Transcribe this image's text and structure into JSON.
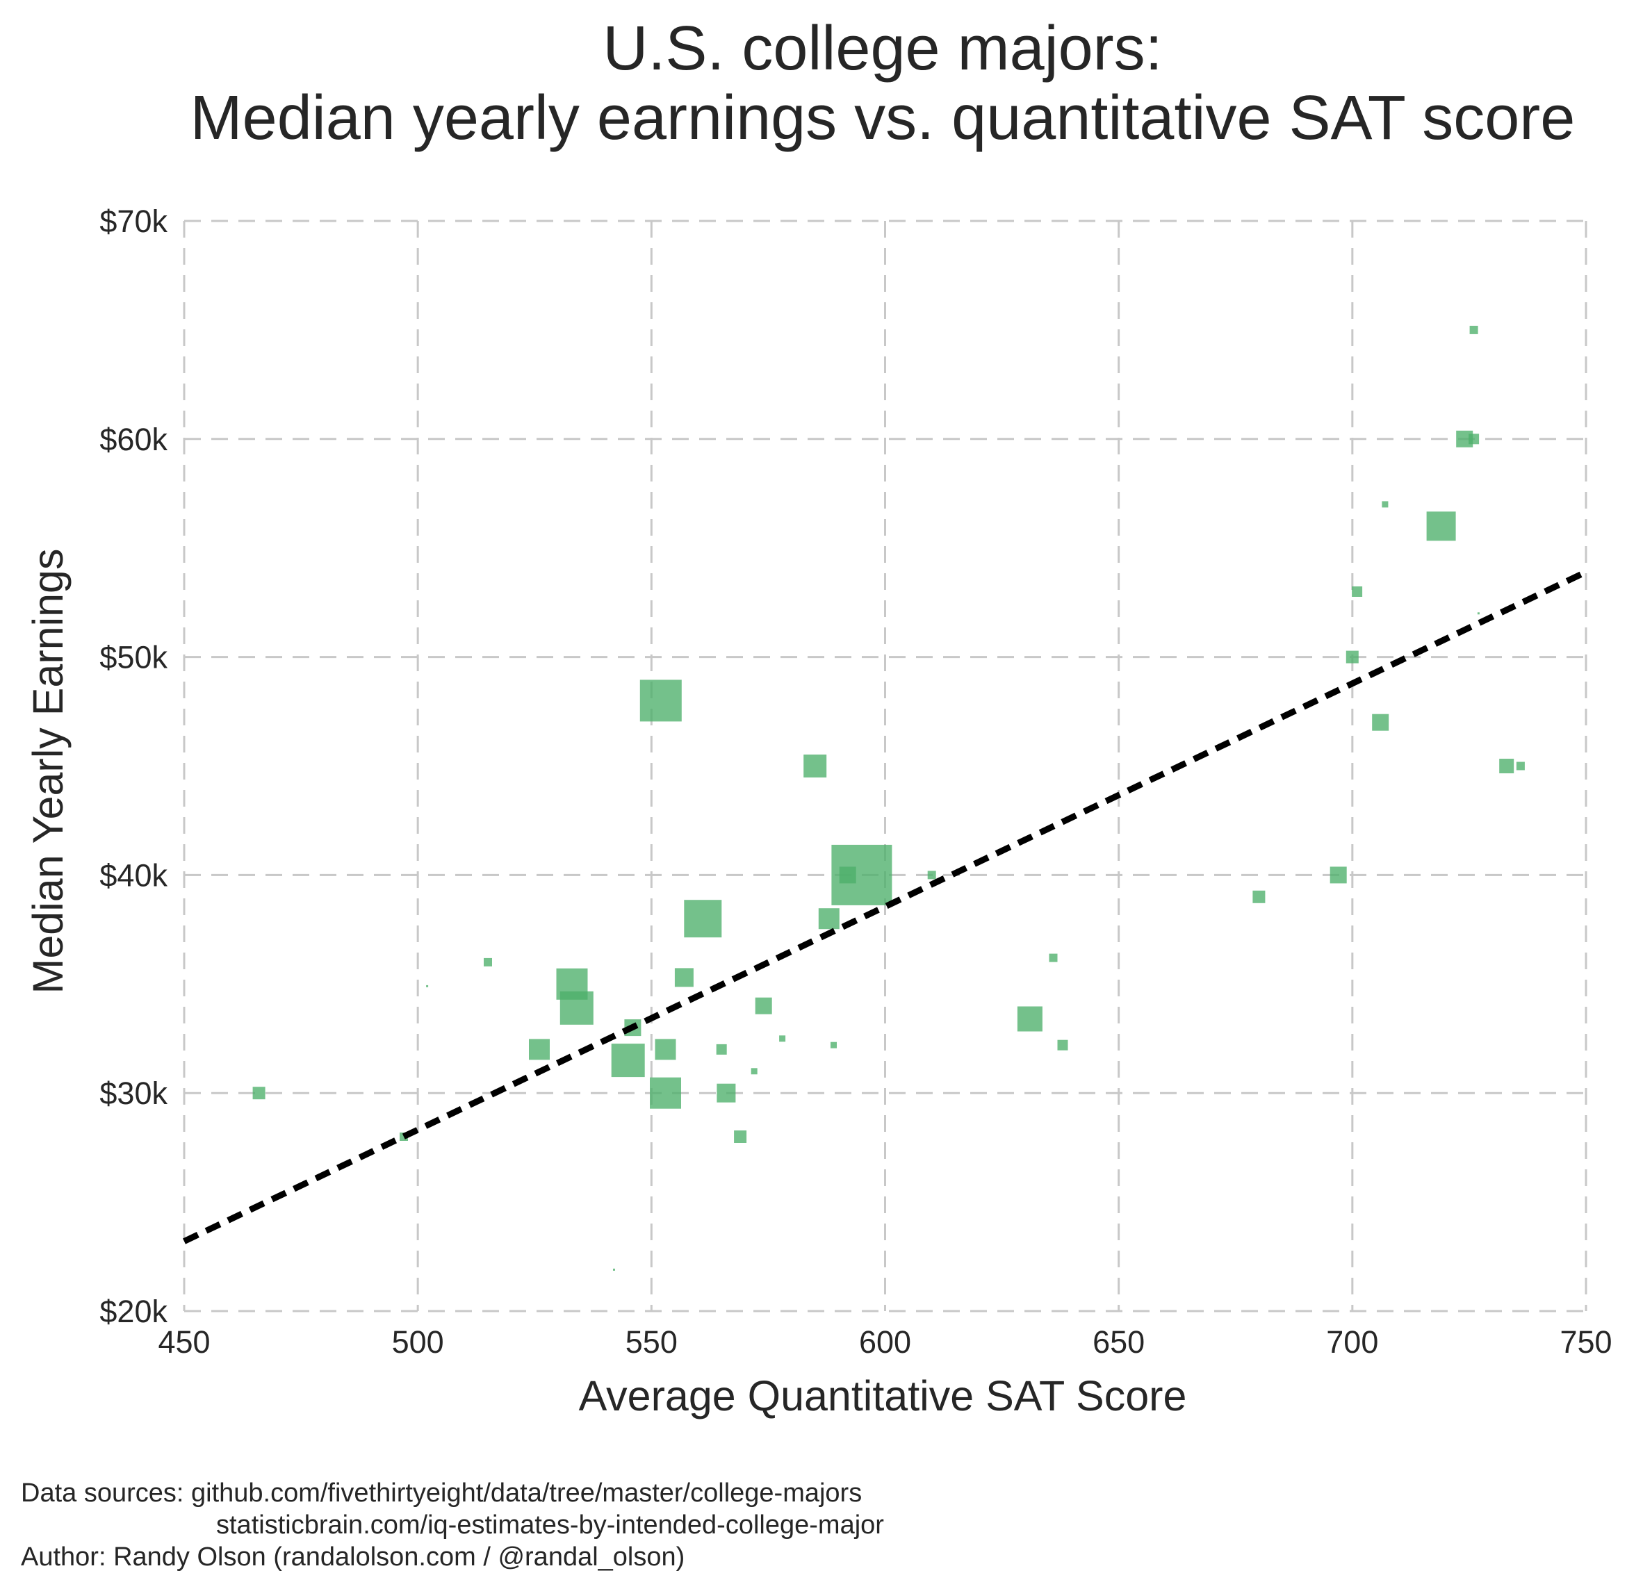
{
  "chart_data": {
    "type": "scatter",
    "title": [
      "U.S. college majors:",
      "Median yearly earnings vs. quantitative SAT score"
    ],
    "xlabel": "Average Quantitative SAT Score",
    "ylabel": "Median Yearly Earnings",
    "xlim": [
      450,
      750
    ],
    "ylim": [
      20000,
      70000
    ],
    "xticks": [
      450,
      500,
      550,
      600,
      650,
      700,
      750
    ],
    "xtick_labels": [
      "450",
      "500",
      "550",
      "600",
      "650",
      "700",
      "750"
    ],
    "yticks": [
      20000,
      30000,
      40000,
      50000,
      60000,
      70000
    ],
    "ytick_labels": [
      "$20k",
      "$30k",
      "$40k",
      "$50k",
      "$60k",
      "$70k"
    ],
    "grid": true,
    "marker": "square",
    "marker_size_encodes": "relative size of each major",
    "color": "#4daf6a",
    "trend_line": {
      "style": "dashed",
      "color": "#000000",
      "points": [
        [
          450,
          23200
        ],
        [
          750,
          53900
        ]
      ]
    },
    "points": [
      {
        "x": 466,
        "y": 30000,
        "size": 6
      },
      {
        "x": 497,
        "y": 28000,
        "size": 4
      },
      {
        "x": 502,
        "y": 34900,
        "size": 1
      },
      {
        "x": 515,
        "y": 36000,
        "size": 4
      },
      {
        "x": 526,
        "y": 32000,
        "size": 10
      },
      {
        "x": 533,
        "y": 35000,
        "size": 15
      },
      {
        "x": 534,
        "y": 33900,
        "size": 16
      },
      {
        "x": 542,
        "y": 21900,
        "size": 1
      },
      {
        "x": 545,
        "y": 31500,
        "size": 16
      },
      {
        "x": 546,
        "y": 33000,
        "size": 8
      },
      {
        "x": 552,
        "y": 48000,
        "size": 20
      },
      {
        "x": 553,
        "y": 30000,
        "size": 15
      },
      {
        "x": 553,
        "y": 32000,
        "size": 10
      },
      {
        "x": 557,
        "y": 35300,
        "size": 9
      },
      {
        "x": 561,
        "y": 38000,
        "size": 18
      },
      {
        "x": 565,
        "y": 32000,
        "size": 5
      },
      {
        "x": 566,
        "y": 30000,
        "size": 9
      },
      {
        "x": 569,
        "y": 28000,
        "size": 6
      },
      {
        "x": 572,
        "y": 31000,
        "size": 3
      },
      {
        "x": 574,
        "y": 34000,
        "size": 8
      },
      {
        "x": 578,
        "y": 32500,
        "size": 3
      },
      {
        "x": 585,
        "y": 45000,
        "size": 11
      },
      {
        "x": 588,
        "y": 38000,
        "size": 10
      },
      {
        "x": 589,
        "y": 32200,
        "size": 3
      },
      {
        "x": 592,
        "y": 40000,
        "size": 8
      },
      {
        "x": 595,
        "y": 40000,
        "size": 29
      },
      {
        "x": 610,
        "y": 40000,
        "size": 4
      },
      {
        "x": 631,
        "y": 33400,
        "size": 12
      },
      {
        "x": 636,
        "y": 36200,
        "size": 4
      },
      {
        "x": 638,
        "y": 32200,
        "size": 5
      },
      {
        "x": 680,
        "y": 39000,
        "size": 6
      },
      {
        "x": 697,
        "y": 40000,
        "size": 8
      },
      {
        "x": 700,
        "y": 50000,
        "size": 6
      },
      {
        "x": 701,
        "y": 53000,
        "size": 5
      },
      {
        "x": 706,
        "y": 47000,
        "size": 8
      },
      {
        "x": 707,
        "y": 57000,
        "size": 3
      },
      {
        "x": 719,
        "y": 56000,
        "size": 14
      },
      {
        "x": 724,
        "y": 60000,
        "size": 8
      },
      {
        "x": 726,
        "y": 60000,
        "size": 5
      },
      {
        "x": 726,
        "y": 65000,
        "size": 4
      },
      {
        "x": 727,
        "y": 52000,
        "size": 1
      },
      {
        "x": 733,
        "y": 45000,
        "size": 7
      },
      {
        "x": 736,
        "y": 45000,
        "size": 4
      }
    ]
  },
  "footer": {
    "sources_line1": "Data sources: github.com/fivethirtyeight/data/tree/master/college-majors",
    "sources_line2": "statisticbrain.com/iq-estimates-by-intended-college-major",
    "author": "Author: Randy Olson (randalolson.com / @randal_olson)"
  }
}
